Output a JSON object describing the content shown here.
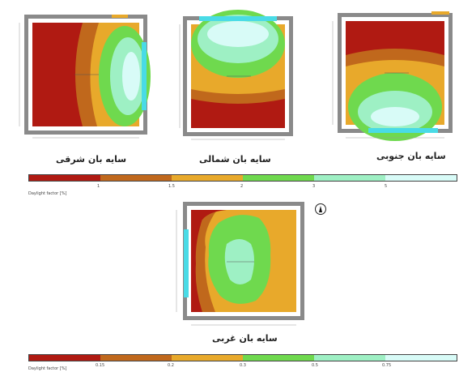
{
  "captions": {
    "east": "سایه بان شرقی",
    "north": "سایه بان شمالی",
    "south": "سایه بان جنوبی",
    "west": "سایه بان غربی"
  },
  "scale_top": {
    "label": "Daylight factor [%]",
    "ticks": [
      "1",
      "1.5",
      "2",
      "3",
      "5"
    ]
  },
  "scale_bottom": {
    "label": "Daylight factor [%]",
    "ticks": [
      "0.15",
      "0.2",
      "0.3",
      "0.5",
      "0.75"
    ]
  },
  "colors": {
    "level1": "#b01a12",
    "level2": "#c0681c",
    "level3": "#e8a92b",
    "level4": "#6fd94e",
    "level5": "#9ef0c4",
    "level6": "#d8fbf7",
    "frame": "#8a8a8a",
    "shade": "#49dbe6"
  },
  "north_icon": "north-arrow-icon"
}
